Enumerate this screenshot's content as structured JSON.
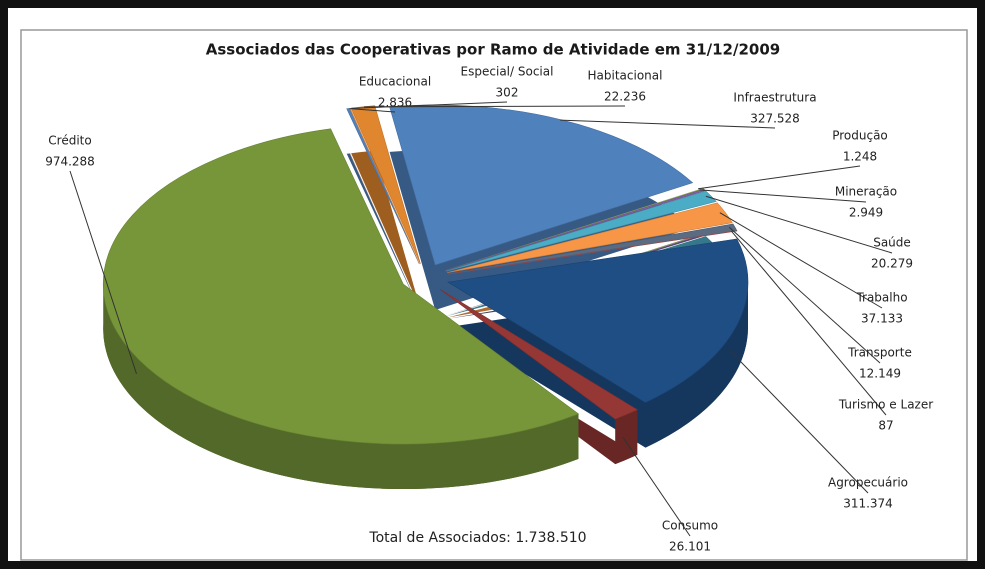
{
  "chart_data": {
    "type": "pie",
    "title": "Associados das Cooperativas  por Ramo de Atividade em 31/12/2009",
    "total_label": "Total de Associados: 1.738.510",
    "categories": [
      "Educacional",
      "Especial/ Social",
      "Habitacional",
      "Infraestrutura",
      "Produção",
      "Mineração",
      "Saúde",
      "Trabalho",
      "Transporte",
      "Turismo e Lazer",
      "Agropecuário",
      "Consumo",
      "Crédito"
    ],
    "values": [
      2836,
      302,
      22236,
      327528,
      1248,
      2949,
      20279,
      37133,
      12149,
      87,
      311374,
      26101,
      974288
    ],
    "value_labels": [
      "2.836",
      "302",
      "22.236",
      "327.528",
      "1.248",
      "2.949",
      "20.279",
      "37.133",
      "12.149",
      "87",
      "311.374",
      "26.101",
      "974.288"
    ],
    "colors": [
      "#4f81bd",
      "#f79646",
      "#e0862e",
      "#4f81bd",
      "#9bbb59",
      "#8064a2",
      "#4bacc6",
      "#f79646",
      "#5b6b82",
      "#c0504d",
      "#1f4e85",
      "#953735",
      "#77963a"
    ]
  }
}
